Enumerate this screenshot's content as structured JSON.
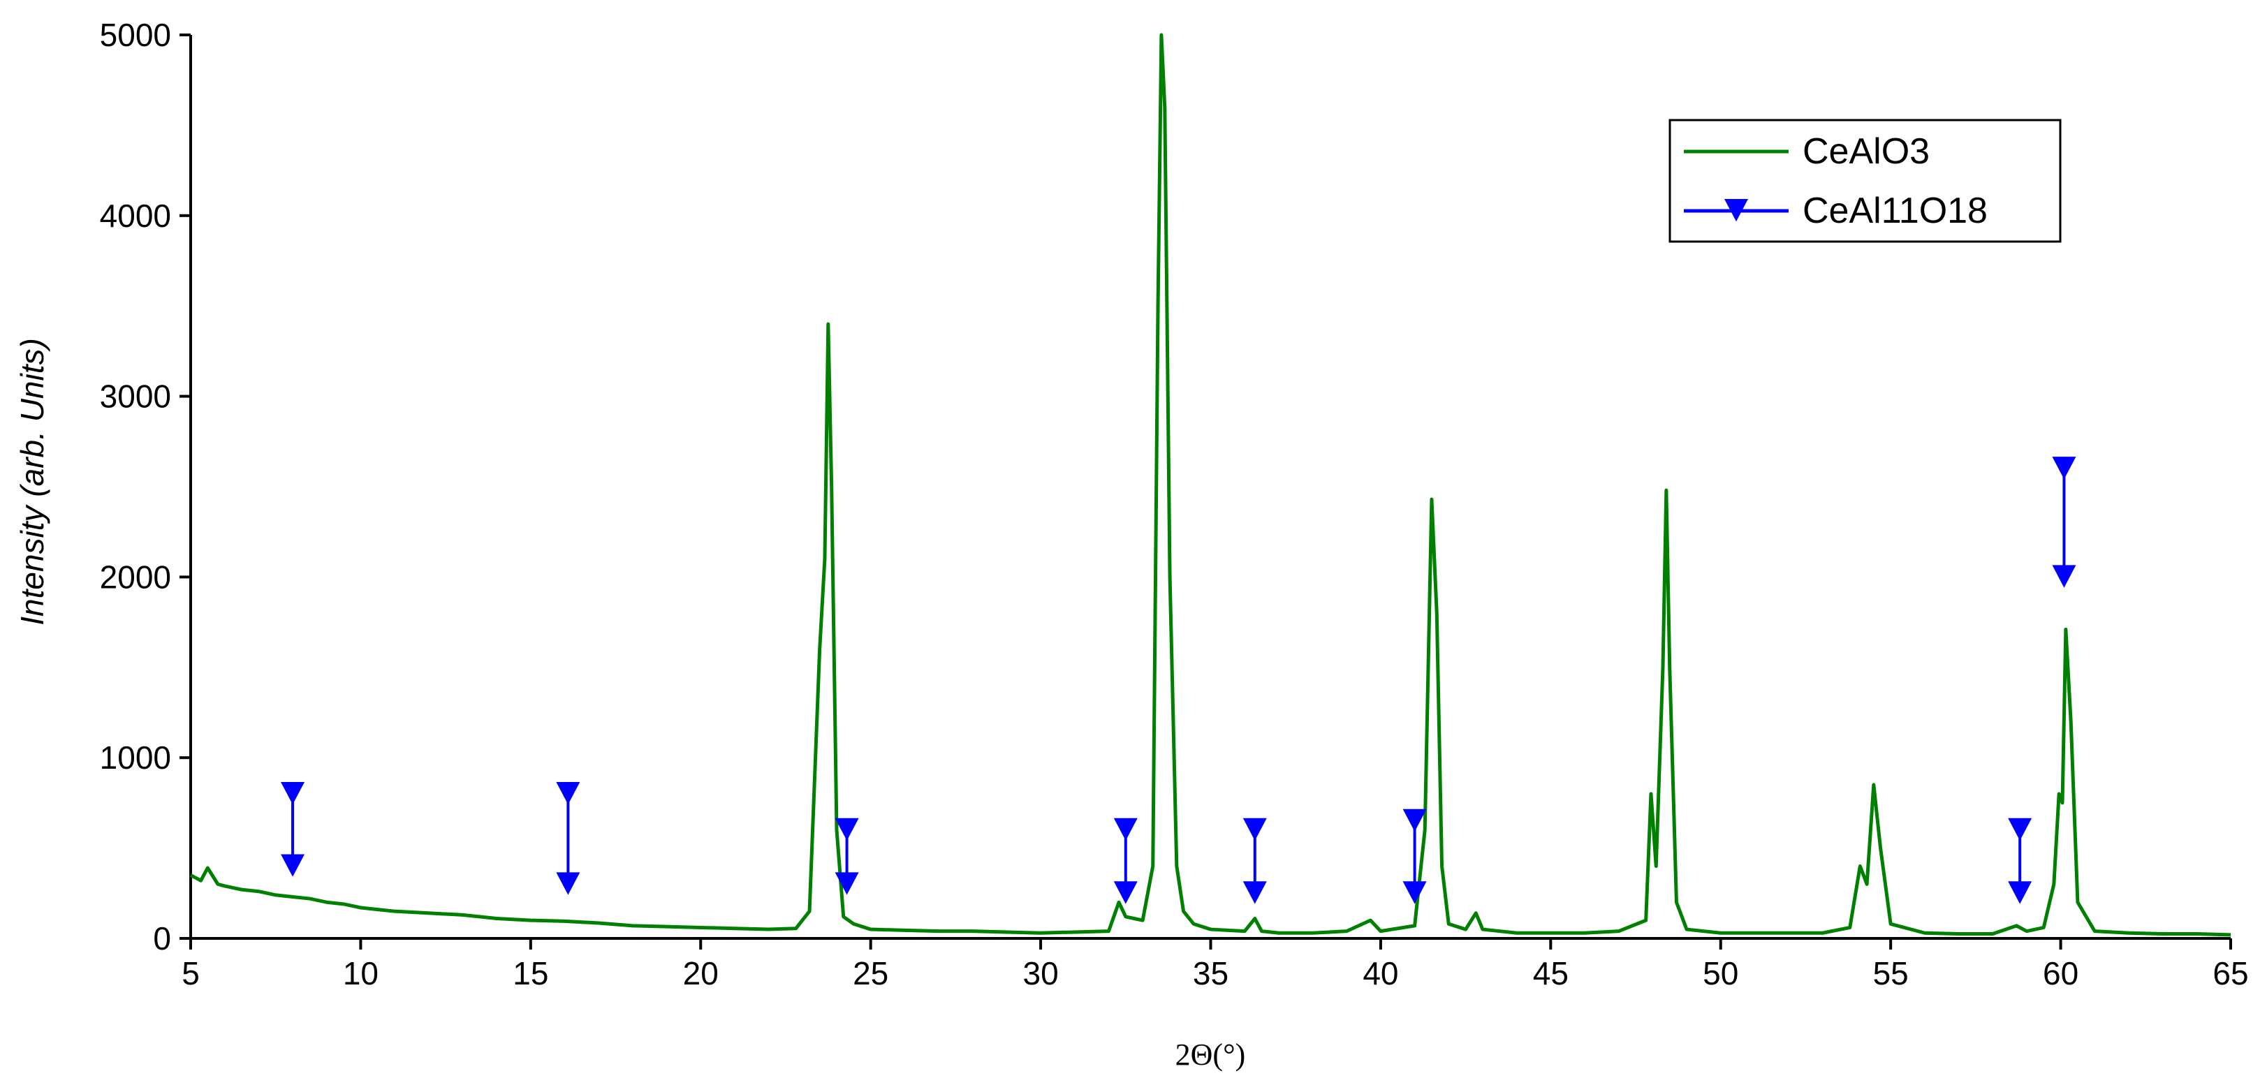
{
  "chart_data": {
    "type": "line",
    "xlabel": "2Θ(°)",
    "ylabel": "Intensity (arb. Units)",
    "xlim": [
      5,
      65
    ],
    "xticks": [
      5,
      10,
      15,
      20,
      25,
      30,
      35,
      40,
      45,
      50,
      55,
      60,
      65
    ],
    "ylim": [
      0,
      5000
    ],
    "yticks": [
      0,
      1000,
      2000,
      3000,
      4000,
      5000
    ],
    "legend": "upper right",
    "series": [
      {
        "name": "CeAlO3",
        "color": "#008000",
        "x": [
          5,
          5.3,
          5.5,
          5.8,
          6,
          6.5,
          7,
          7.5,
          8,
          8.5,
          9,
          9.5,
          10,
          10.5,
          11,
          12,
          13,
          14,
          15,
          16,
          17,
          18,
          19,
          20,
          21,
          22,
          22.8,
          23.2,
          23.5,
          23.65,
          23.75,
          23.85,
          24,
          24.2,
          24.5,
          25,
          26,
          27,
          28,
          29,
          30,
          31,
          32,
          32.3,
          32.5,
          33,
          33.3,
          33.45,
          33.55,
          33.65,
          33.8,
          34,
          34.2,
          34.5,
          35,
          36,
          36.3,
          36.5,
          37,
          38,
          39,
          39.7,
          40,
          41,
          41.3,
          41.5,
          41.65,
          41.8,
          42,
          42.5,
          42.8,
          43,
          44,
          45,
          46,
          47,
          47.8,
          47.95,
          48.1,
          48.3,
          48.4,
          48.5,
          48.7,
          49,
          50,
          51,
          52,
          53,
          53.8,
          54.1,
          54.3,
          54.5,
          54.7,
          55,
          56,
          57,
          58,
          58.7,
          59,
          59.5,
          59.8,
          59.95,
          60.05,
          60.15,
          60.3,
          60.5,
          61,
          62,
          63,
          64,
          65
        ],
        "values": [
          350,
          320,
          390,
          300,
          290,
          270,
          260,
          240,
          230,
          220,
          200,
          190,
          170,
          160,
          150,
          140,
          130,
          110,
          100,
          95,
          85,
          70,
          65,
          60,
          55,
          50,
          55,
          150,
          1600,
          2100,
          3400,
          2500,
          600,
          120,
          80,
          50,
          45,
          40,
          40,
          35,
          30,
          35,
          40,
          200,
          120,
          100,
          400,
          3500,
          5000,
          4600,
          2000,
          400,
          150,
          80,
          50,
          40,
          110,
          40,
          30,
          30,
          40,
          100,
          40,
          70,
          600,
          2430,
          1800,
          400,
          80,
          50,
          140,
          50,
          30,
          30,
          30,
          40,
          100,
          800,
          400,
          1500,
          2480,
          1500,
          200,
          50,
          30,
          30,
          30,
          30,
          60,
          400,
          300,
          850,
          500,
          80,
          30,
          25,
          25,
          70,
          40,
          60,
          300,
          800,
          750,
          1710,
          1200,
          200,
          40,
          30,
          25,
          25,
          20
        ]
      },
      {
        "name": "CeAl11O18",
        "color": "#0000ff",
        "x": [
          8,
          16.1,
          24.3,
          32.5,
          36.3,
          41,
          58.8,
          60.1
        ],
        "y_top": [
          800,
          800,
          600,
          600,
          600,
          650,
          600,
          2600
        ],
        "y_bottom": [
          400,
          300,
          300,
          250,
          250,
          250,
          250,
          2000
        ]
      }
    ]
  }
}
